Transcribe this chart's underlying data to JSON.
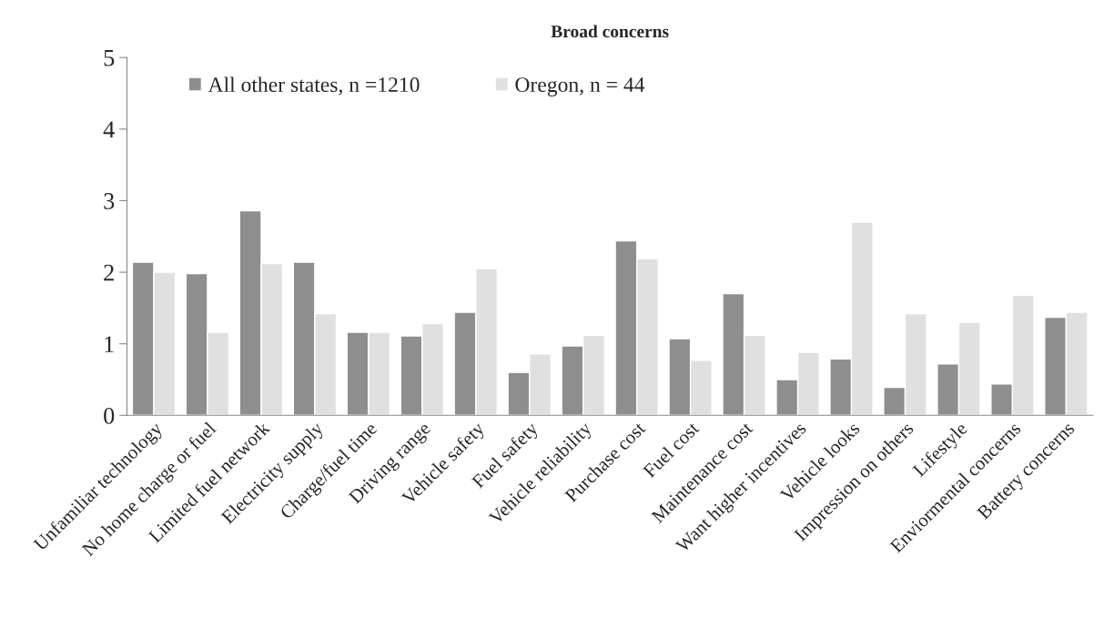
{
  "chart_data": {
    "type": "bar",
    "title": "Broad concerns",
    "categories": [
      "Unfamiliar technology",
      "No home charge or fuel",
      "Limited fuel network",
      "Electricity supply",
      "Charge/fuel time",
      "Driving range",
      "Vehicle safety",
      "Fuel safety",
      "Vehicle reliability",
      "Purchase cost",
      "Fuel cost",
      "Maintenance cost",
      "Want higher incentives",
      "Vehicle looks",
      "Impression on others",
      "Lifestyle",
      "Enviormental concerns",
      "Battery concerns"
    ],
    "series": [
      {
        "name": "All other states, n =1210",
        "color": "#8e8e8e",
        "values": [
          2.14,
          1.98,
          2.86,
          2.14,
          1.16,
          1.11,
          1.44,
          0.6,
          0.97,
          2.44,
          1.07,
          1.7,
          0.5,
          0.79,
          0.39,
          0.72,
          0.44,
          1.37
        ]
      },
      {
        "name": "Oregon, n = 44",
        "color": "#e0e0e0",
        "values": [
          2.0,
          1.16,
          2.12,
          1.42,
          1.16,
          1.28,
          2.05,
          0.86,
          1.12,
          2.19,
          0.77,
          1.12,
          0.88,
          2.7,
          1.42,
          1.3,
          1.68,
          1.44
        ]
      }
    ],
    "ylim": [
      0,
      5
    ],
    "yticks": [
      0,
      1,
      2,
      3,
      4,
      5
    ],
    "grid": false,
    "legend": "top"
  }
}
